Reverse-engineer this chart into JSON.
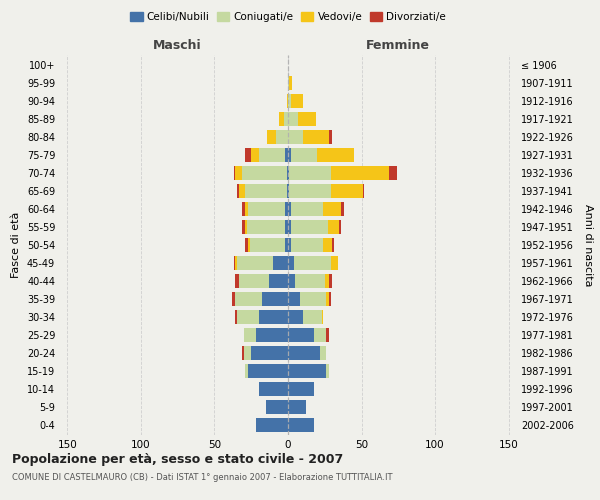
{
  "age_groups": [
    "0-4",
    "5-9",
    "10-14",
    "15-19",
    "20-24",
    "25-29",
    "30-34",
    "35-39",
    "40-44",
    "45-49",
    "50-54",
    "55-59",
    "60-64",
    "65-69",
    "70-74",
    "75-79",
    "80-84",
    "85-89",
    "90-94",
    "95-99",
    "100+"
  ],
  "birth_years": [
    "2002-2006",
    "1997-2001",
    "1992-1996",
    "1987-1991",
    "1982-1986",
    "1977-1981",
    "1972-1976",
    "1967-1971",
    "1962-1966",
    "1957-1961",
    "1952-1956",
    "1947-1951",
    "1942-1946",
    "1937-1941",
    "1932-1936",
    "1927-1931",
    "1922-1926",
    "1917-1921",
    "1912-1916",
    "1907-1911",
    "≤ 1906"
  ],
  "male": {
    "celibi": [
      22,
      15,
      20,
      27,
      25,
      22,
      20,
      18,
      13,
      10,
      2,
      2,
      2,
      1,
      1,
      2,
      0,
      0,
      0,
      0,
      0
    ],
    "coniugati": [
      0,
      0,
      0,
      2,
      5,
      8,
      15,
      18,
      20,
      25,
      24,
      26,
      25,
      28,
      30,
      18,
      8,
      3,
      0,
      0,
      0
    ],
    "vedovi": [
      0,
      0,
      0,
      0,
      0,
      0,
      0,
      0,
      0,
      1,
      1,
      1,
      2,
      4,
      5,
      5,
      6,
      3,
      1,
      0,
      0
    ],
    "divorziati": [
      0,
      0,
      0,
      0,
      1,
      0,
      1,
      2,
      3,
      1,
      2,
      2,
      2,
      2,
      1,
      4,
      0,
      0,
      0,
      0,
      0
    ]
  },
  "female": {
    "nubili": [
      18,
      12,
      18,
      26,
      22,
      18,
      10,
      8,
      5,
      4,
      2,
      2,
      2,
      1,
      1,
      2,
      0,
      0,
      0,
      0,
      0
    ],
    "coniugate": [
      0,
      0,
      0,
      2,
      4,
      8,
      13,
      18,
      20,
      25,
      22,
      25,
      22,
      28,
      28,
      18,
      10,
      7,
      2,
      1,
      0
    ],
    "vedove": [
      0,
      0,
      0,
      0,
      0,
      0,
      1,
      2,
      3,
      5,
      6,
      8,
      12,
      22,
      40,
      25,
      18,
      12,
      8,
      2,
      0
    ],
    "divorziate": [
      0,
      0,
      0,
      0,
      0,
      2,
      0,
      1,
      2,
      0,
      1,
      1,
      2,
      1,
      5,
      0,
      2,
      0,
      0,
      0,
      0
    ]
  },
  "colors": {
    "celibi": "#4472a8",
    "coniugati": "#c5d9a0",
    "vedovi": "#f5c518",
    "divorziati": "#c0392b"
  },
  "xlim": 155,
  "title": "Popolazione per età, sesso e stato civile - 2007",
  "subtitle": "COMUNE DI CASTELMAURO (CB) - Dati ISTAT 1° gennaio 2007 - Elaborazione TUTTITALIA.IT",
  "ylabel_left": "Fasce di età",
  "ylabel_right": "Anni di nascita",
  "xlabel_left": "Maschi",
  "xlabel_right": "Femmine",
  "bg_color": "#f0f0eb",
  "grid_color": "#cccccc"
}
